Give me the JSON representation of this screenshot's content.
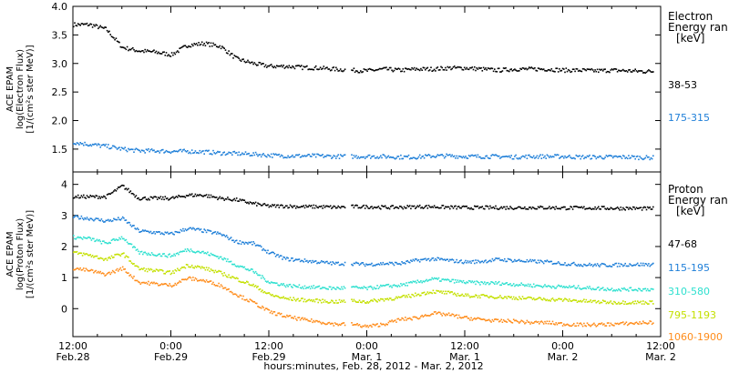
{
  "chart_data": [
    {
      "type": "scatter",
      "panel": "electron",
      "ylabel_lines": [
        "ACE EPAM",
        "log(Electron Flux)",
        "[1/(cm²s ster MeV)]"
      ],
      "ylim": [
        1.1,
        4.0
      ],
      "yticks": [
        1.5,
        2.0,
        2.5,
        3.0,
        3.5,
        4.0
      ],
      "ytick_labels": [
        "1.5",
        "2.0",
        "2.5",
        "3.0",
        "3.5",
        "4.0"
      ],
      "legend_title_lines": [
        "Electron",
        "Energy ran",
        "[keV]"
      ],
      "legend_placement": "right",
      "x_hours_since_start": [
        0,
        2,
        4,
        6,
        8,
        10,
        12,
        14,
        16,
        18,
        20,
        22,
        24,
        26,
        28,
        30,
        32,
        34,
        36,
        38,
        40,
        42,
        44,
        46,
        48,
        50,
        52,
        54,
        56,
        58,
        60,
        62,
        64,
        66,
        68,
        70,
        71
      ],
      "series": [
        {
          "name": "38-53",
          "color": "#000000",
          "values": [
            3.68,
            3.68,
            3.6,
            3.28,
            3.22,
            3.2,
            3.15,
            3.32,
            3.35,
            3.3,
            3.08,
            3.0,
            2.95,
            2.95,
            2.93,
            2.92,
            2.9,
            2.88,
            2.87,
            2.9,
            2.88,
            2.9,
            2.9,
            2.92,
            2.92,
            2.9,
            2.88,
            2.9,
            2.9,
            2.9,
            2.88,
            2.88,
            2.87,
            2.88,
            2.87,
            2.86,
            2.86
          ]
        },
        {
          "name": "175-315",
          "color": "#1f7fd8",
          "values": [
            1.62,
            1.58,
            1.55,
            1.5,
            1.47,
            1.47,
            1.46,
            1.46,
            1.45,
            1.43,
            1.42,
            1.41,
            1.39,
            1.38,
            1.38,
            1.38,
            1.37,
            1.37,
            1.37,
            1.37,
            1.36,
            1.36,
            1.38,
            1.38,
            1.37,
            1.37,
            1.37,
            1.36,
            1.37,
            1.37,
            1.37,
            1.36,
            1.36,
            1.36,
            1.36,
            1.35,
            1.35
          ]
        }
      ]
    },
    {
      "type": "scatter",
      "panel": "proton",
      "ylabel_lines": [
        "ACE EPAM",
        "log(Proton Flux)",
        "[1/(cm²s ster MeV)]"
      ],
      "ylim": [
        -0.9,
        4.4
      ],
      "yticks": [
        0,
        1,
        2,
        3,
        4
      ],
      "ytick_labels": [
        "0",
        "1",
        "2",
        "3",
        "4"
      ],
      "legend_title_lines": [
        "Proton",
        "Energy ran",
        "[keV]"
      ],
      "legend_placement": "right",
      "x_hours_since_start": [
        0,
        2,
        4,
        6,
        8,
        10,
        12,
        14,
        16,
        18,
        20,
        22,
        24,
        26,
        28,
        30,
        32,
        34,
        36,
        38,
        40,
        42,
        44,
        46,
        48,
        50,
        52,
        54,
        56,
        58,
        60,
        62,
        64,
        66,
        68,
        70,
        71
      ],
      "series": [
        {
          "name": "47-68",
          "color": "#000000",
          "values": [
            3.6,
            3.6,
            3.6,
            3.95,
            3.55,
            3.55,
            3.55,
            3.65,
            3.65,
            3.55,
            3.5,
            3.38,
            3.3,
            3.3,
            3.28,
            3.28,
            3.26,
            3.28,
            3.28,
            3.26,
            3.26,
            3.28,
            3.28,
            3.26,
            3.25,
            3.25,
            3.25,
            3.25,
            3.25,
            3.25,
            3.24,
            3.24,
            3.24,
            3.23,
            3.23,
            3.22,
            3.22
          ]
        },
        {
          "name": "115-195",
          "color": "#1f7fd8",
          "values": [
            2.95,
            2.9,
            2.82,
            2.9,
            2.5,
            2.45,
            2.4,
            2.58,
            2.5,
            2.4,
            2.15,
            2.1,
            1.8,
            1.6,
            1.55,
            1.5,
            1.45,
            1.45,
            1.42,
            1.45,
            1.45,
            1.55,
            1.6,
            1.55,
            1.5,
            1.52,
            1.58,
            1.55,
            1.52,
            1.5,
            1.45,
            1.42,
            1.4,
            1.4,
            1.42,
            1.42,
            1.42
          ]
        },
        {
          "name": "310-580",
          "color": "#2ee0cf",
          "values": [
            2.3,
            2.25,
            2.1,
            2.3,
            1.8,
            1.75,
            1.7,
            1.9,
            1.8,
            1.65,
            1.4,
            1.2,
            0.85,
            0.75,
            0.7,
            0.68,
            0.65,
            0.68,
            0.65,
            0.72,
            0.75,
            0.85,
            0.95,
            0.9,
            0.85,
            0.82,
            0.82,
            0.78,
            0.75,
            0.72,
            0.7,
            0.68,
            0.65,
            0.62,
            0.62,
            0.62,
            0.62
          ]
        },
        {
          "name": "795-1193",
          "color": "#c4e000",
          "values": [
            1.8,
            1.72,
            1.58,
            1.78,
            1.28,
            1.22,
            1.15,
            1.4,
            1.3,
            1.15,
            0.95,
            0.75,
            0.45,
            0.32,
            0.28,
            0.25,
            0.22,
            0.25,
            0.22,
            0.3,
            0.35,
            0.45,
            0.55,
            0.5,
            0.42,
            0.4,
            0.38,
            0.35,
            0.32,
            0.3,
            0.28,
            0.25,
            0.22,
            0.2,
            0.2,
            0.2,
            0.2
          ]
        },
        {
          "name": "1060-1900",
          "color": "#ff8c1a",
          "values": [
            1.3,
            1.22,
            1.1,
            1.3,
            0.85,
            0.8,
            0.75,
            0.98,
            0.9,
            0.75,
            0.45,
            0.2,
            -0.1,
            -0.25,
            -0.35,
            -0.42,
            -0.5,
            -0.5,
            -0.58,
            -0.5,
            -0.35,
            -0.3,
            -0.15,
            -0.2,
            -0.3,
            -0.35,
            -0.4,
            -0.4,
            -0.45,
            -0.45,
            -0.5,
            -0.52,
            -0.52,
            -0.5,
            -0.48,
            -0.45,
            -0.45
          ]
        }
      ]
    }
  ],
  "time_axis": {
    "range_hours": [
      0,
      72
    ],
    "tick_hours": [
      0,
      12,
      24,
      36,
      48,
      60,
      72
    ],
    "tick_time_labels": [
      "12:00",
      "0:00",
      "12:00",
      "0:00",
      "12:00",
      "0:00",
      "12:00"
    ],
    "tick_date_labels": [
      "Feb.28",
      "Feb.29",
      "Feb.29",
      "Mar. 1",
      "Mar. 1",
      "Mar. 2",
      "Mar. 2"
    ],
    "xlabel": "hours:minutes, Feb. 28, 2012 - Mar. 2, 2012"
  }
}
